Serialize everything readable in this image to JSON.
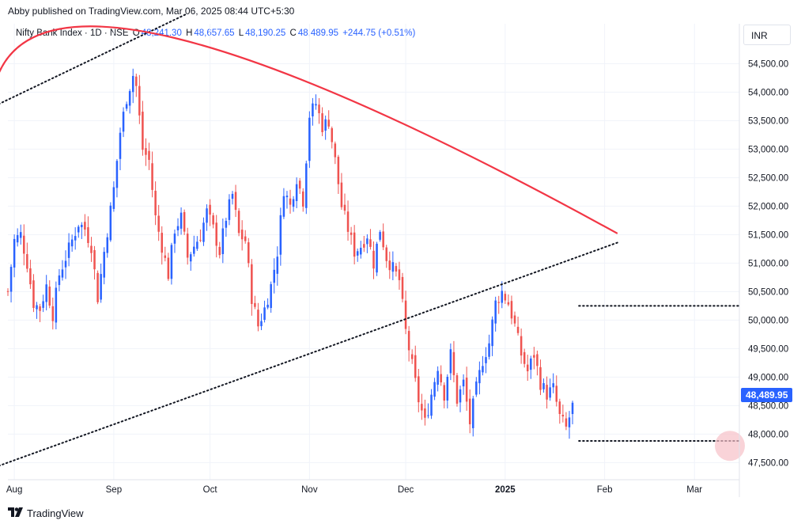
{
  "header": {
    "published": "Abby published on TradingView.com, Mar 06, 2025 08:44 UTC+5:30"
  },
  "legend": {
    "symbol": "Nifty Bank Index · 1D · NSE",
    "o_label": "O",
    "o_value": "48,241.30",
    "h_label": "H",
    "h_value": "48,657.65",
    "l_label": "L",
    "l_value": "48,190.25",
    "c_label": "C",
    "c_value": "48,489.95",
    "change": "+244.75 (+0.51%)"
  },
  "currency": "INR",
  "last_price_label": "48,489.95",
  "footer": {
    "brand": "TradingView",
    "logo_icon": "tradingview-logo-icon"
  },
  "colors": {
    "up": "#2962ff",
    "down": "#ef5350",
    "arc": "#f23645",
    "trendline": "#131722",
    "marker": "#f7c1c7"
  },
  "chart_data": {
    "type": "candlestick",
    "x_axis": {
      "tick_labels": [
        "Aug",
        "Sep",
        "Oct",
        "Nov",
        "Dec",
        "2025",
        "Feb",
        "Mar"
      ],
      "tick_days": [
        0,
        31,
        61,
        92,
        122,
        153,
        184,
        212
      ]
    },
    "y_axis": {
      "range": [
        47200,
        55200
      ],
      "tick_labels": [
        "47,500.00",
        "48,000.00",
        "48,500.00",
        "49,000.00",
        "49,500.00",
        "50,000.00",
        "50,500.00",
        "51,000.00",
        "51,500.00",
        "52,000.00",
        "52,500.00",
        "53,000.00",
        "53,500.00",
        "54,000.00",
        "54,500.00"
      ],
      "ticks": [
        47500,
        48000,
        48500,
        49000,
        49500,
        50000,
        50500,
        51000,
        51500,
        52000,
        52500,
        53000,
        53500,
        54000,
        54500
      ]
    },
    "grid": true,
    "close_anchors": [
      [
        -2,
        50500
      ],
      [
        0,
        51400
      ],
      [
        2,
        51500
      ],
      [
        4,
        51000
      ],
      [
        6,
        50300
      ],
      [
        8,
        50200
      ],
      [
        10,
        50600
      ],
      [
        12,
        50100
      ],
      [
        14,
        50800
      ],
      [
        16,
        51100
      ],
      [
        18,
        51400
      ],
      [
        20,
        51700
      ],
      [
        22,
        51600
      ],
      [
        24,
        51300
      ],
      [
        26,
        50400
      ],
      [
        28,
        51200
      ],
      [
        31,
        52300
      ],
      [
        33,
        53300
      ],
      [
        35,
        53900
      ],
      [
        37,
        54300
      ],
      [
        38,
        54100
      ],
      [
        40,
        53000
      ],
      [
        42,
        52800
      ],
      [
        44,
        51800
      ],
      [
        46,
        51300
      ],
      [
        48,
        50800
      ],
      [
        50,
        51600
      ],
      [
        52,
        51800
      ],
      [
        54,
        51100
      ],
      [
        56,
        51300
      ],
      [
        58,
        51500
      ],
      [
        60,
        51900
      ],
      [
        62,
        51600
      ],
      [
        64,
        51200
      ],
      [
        66,
        51800
      ],
      [
        68,
        52200
      ],
      [
        70,
        51500
      ],
      [
        72,
        51400
      ],
      [
        74,
        50400
      ],
      [
        76,
        49900
      ],
      [
        78,
        50200
      ],
      [
        80,
        50600
      ],
      [
        82,
        51200
      ],
      [
        84,
        52300
      ],
      [
        86,
        52000
      ],
      [
        88,
        52500
      ],
      [
        90,
        52100
      ],
      [
        92,
        53600
      ],
      [
        94,
        53800
      ],
      [
        96,
        53400
      ],
      [
        98,
        53500
      ],
      [
        100,
        52800
      ],
      [
        102,
        52000
      ],
      [
        104,
        51600
      ],
      [
        106,
        51200
      ],
      [
        108,
        51300
      ],
      [
        110,
        51500
      ],
      [
        112,
        51000
      ],
      [
        114,
        51600
      ],
      [
        116,
        51100
      ],
      [
        118,
        50900
      ],
      [
        120,
        50700
      ],
      [
        122,
        49800
      ],
      [
        124,
        49200
      ],
      [
        126,
        48600
      ],
      [
        128,
        48200
      ],
      [
        130,
        48700
      ],
      [
        132,
        49200
      ],
      [
        134,
        48700
      ],
      [
        136,
        49400
      ],
      [
        138,
        48600
      ],
      [
        140,
        48900
      ],
      [
        142,
        48200
      ],
      [
        144,
        48800
      ],
      [
        146,
        49300
      ],
      [
        148,
        49600
      ],
      [
        150,
        50300
      ],
      [
        152,
        50500
      ],
      [
        154,
        50300
      ],
      [
        156,
        49900
      ],
      [
        158,
        49400
      ],
      [
        160,
        49100
      ],
      [
        162,
        49400
      ],
      [
        164,
        48900
      ],
      [
        166,
        48700
      ],
      [
        168,
        48800
      ],
      [
        170,
        48300
      ],
      [
        172,
        48100
      ],
      [
        174,
        48490
      ]
    ],
    "trendline_lower": {
      "start": [
        -6,
        47420
      ],
      "end": [
        188,
        51360
      ],
      "style": "dotted"
    },
    "trendline_upper": {
      "start": [
        -6,
        53760
      ],
      "end": [
        54,
        55380
      ],
      "style": "dotted"
    },
    "support_line": {
      "start": [
        176,
        47880
      ],
      "end": [
        226,
        47880
      ],
      "price": 47880,
      "style": "dotted"
    },
    "resistance_line": {
      "start": [
        176,
        50250
      ],
      "end": [
        226,
        50250
      ],
      "price": 50250,
      "style": "dotted"
    },
    "arc": {
      "start": [
        -6,
        54150
      ],
      "peak": [
        50,
        54950
      ],
      "end": [
        188,
        51520
      ]
    },
    "highlight_marker": {
      "center": [
        226,
        47850
      ]
    }
  }
}
